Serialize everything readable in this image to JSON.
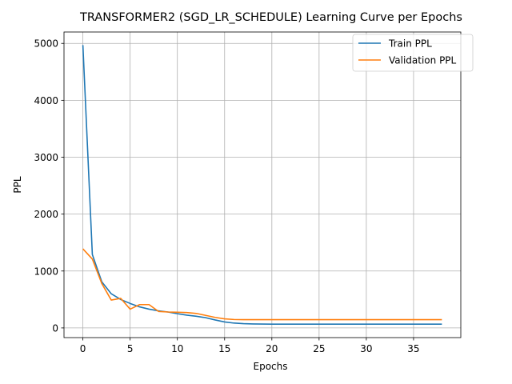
{
  "chart_data": {
    "type": "line",
    "title": "TRANSFORMER2 (SGD_LR_SCHEDULE) Learning Curve per Epochs",
    "xlabel": "Epochs",
    "ylabel": "PPL",
    "xlim": [
      -2,
      40
    ],
    "ylim": [
      -170,
      5200
    ],
    "xticks": [
      0,
      5,
      10,
      15,
      20,
      25,
      30,
      35
    ],
    "yticks": [
      0,
      1000,
      2000,
      3000,
      4000,
      5000
    ],
    "grid": true,
    "legend_position": "upper right",
    "x": [
      0,
      1,
      2,
      3,
      4,
      5,
      6,
      7,
      8,
      9,
      10,
      11,
      12,
      13,
      14,
      15,
      16,
      17,
      18,
      19,
      20,
      21,
      22,
      23,
      24,
      25,
      26,
      27,
      28,
      29,
      30,
      31,
      32,
      33,
      34,
      35,
      36,
      37,
      38
    ],
    "series": [
      {
        "name": "Train PPL",
        "color": "#1f77b4",
        "values": [
          4970,
          1290,
          810,
          600,
          500,
          430,
          370,
          330,
          300,
          280,
          250,
          225,
          205,
          180,
          140,
          105,
          85,
          75,
          70,
          68,
          67,
          66,
          66,
          66,
          66,
          66,
          66,
          66,
          66,
          66,
          66,
          66,
          66,
          66,
          66,
          66,
          66,
          66,
          66
        ]
      },
      {
        "name": "Validation PPL",
        "color": "#ff7f0e",
        "values": [
          1390,
          1210,
          780,
          490,
          520,
          330,
          410,
          410,
          290,
          280,
          275,
          270,
          255,
          220,
          185,
          160,
          148,
          145,
          145,
          145,
          145,
          145,
          145,
          145,
          145,
          145,
          145,
          145,
          145,
          145,
          145,
          145,
          145,
          145,
          145,
          145,
          145,
          145,
          145
        ]
      }
    ]
  }
}
